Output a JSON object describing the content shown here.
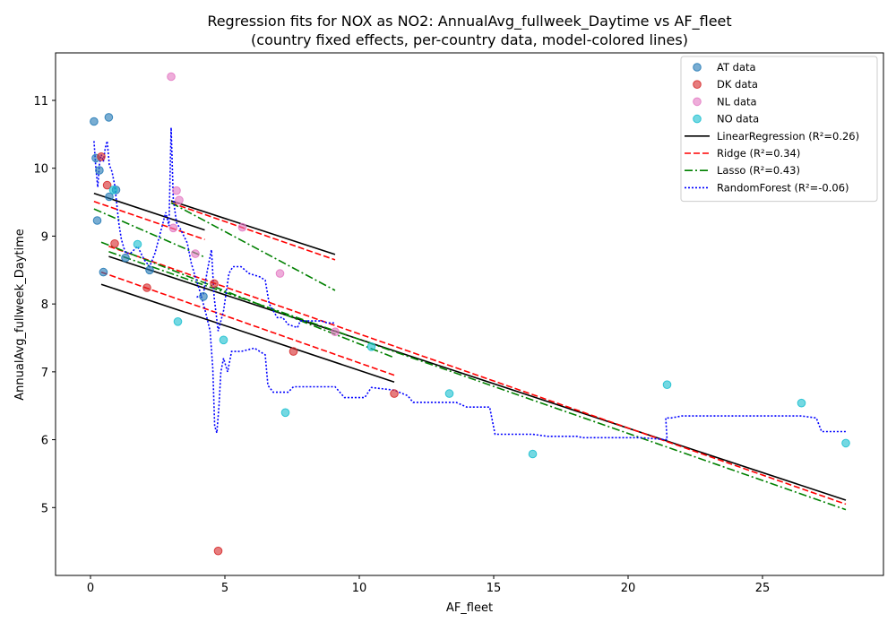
{
  "chart_data": {
    "type": "scatter",
    "title_line1": "Regression fits for NOX as NO2: AnnualAvg_fullweek_Daytime vs AF_fleet",
    "title_line2": "(country fixed effects, per-country data, model-colored lines)",
    "xlabel": "AF_fleet",
    "ylabel": "AnnualAvg_fullweek_Daytime",
    "xlim": [
      -1.3,
      29.5
    ],
    "ylim": [
      4.0,
      11.7
    ],
    "xticks": [
      0,
      5,
      10,
      15,
      20,
      25
    ],
    "yticks": [
      5,
      6,
      7,
      8,
      9,
      10,
      11
    ],
    "grid": false,
    "legend_position": "top-right",
    "scatter_series": [
      {
        "name": "AT data",
        "color": "#1f77b4",
        "points": [
          [
            0.13,
            10.69
          ],
          [
            0.2,
            10.15
          ],
          [
            0.68,
            10.75
          ],
          [
            0.33,
            9.97
          ],
          [
            0.25,
            9.23
          ],
          [
            0.7,
            9.58
          ],
          [
            0.48,
            8.47
          ],
          [
            1.3,
            8.68
          ],
          [
            2.2,
            8.5
          ],
          [
            4.2,
            8.11
          ],
          [
            0.95,
            9.68
          ]
        ]
      },
      {
        "name": "DK data",
        "color": "#d62728",
        "points": [
          [
            0.4,
            10.17
          ],
          [
            0.62,
            9.75
          ],
          [
            0.9,
            8.89
          ],
          [
            2.1,
            8.24
          ],
          [
            4.6,
            8.3
          ],
          [
            7.55,
            7.3
          ],
          [
            11.3,
            6.68
          ],
          [
            4.75,
            4.36
          ]
        ]
      },
      {
        "name": "NL data",
        "color": "#e377c2",
        "points": [
          [
            3.0,
            11.35
          ],
          [
            3.2,
            9.67
          ],
          [
            3.3,
            9.53
          ],
          [
            3.08,
            9.12
          ],
          [
            3.9,
            8.74
          ],
          [
            5.65,
            9.13
          ],
          [
            7.05,
            8.45
          ],
          [
            9.1,
            7.59
          ]
        ]
      },
      {
        "name": "NO data",
        "color": "#17becf",
        "points": [
          [
            0.85,
            9.68
          ],
          [
            1.75,
            8.88
          ],
          [
            3.25,
            7.74
          ],
          [
            4.95,
            7.47
          ],
          [
            7.25,
            6.4
          ],
          [
            10.45,
            7.37
          ],
          [
            13.35,
            6.68
          ],
          [
            16.45,
            5.79
          ],
          [
            21.45,
            6.81
          ],
          [
            26.45,
            6.54
          ],
          [
            28.1,
            5.95
          ]
        ]
      }
    ],
    "fit_series": [
      {
        "name": "LinearRegression (R²=0.26)",
        "color": "#000000",
        "dash": "solid",
        "segments": [
          [
            [
              0.13,
              9.63
            ],
            [
              4.25,
              9.09
            ]
          ],
          [
            [
              0.4,
              8.29
            ],
            [
              11.3,
              6.85
            ]
          ],
          [
            [
              3.0,
              9.52
            ],
            [
              9.1,
              8.73
            ]
          ],
          [
            [
              0.68,
              8.7
            ],
            [
              28.1,
              5.11
            ]
          ]
        ]
      },
      {
        "name": "Ridge (R²=0.34)",
        "color": "#ff0000",
        "dash": "dashed",
        "segments": [
          [
            [
              0.13,
              9.51
            ],
            [
              4.25,
              8.95
            ]
          ],
          [
            [
              0.4,
              8.47
            ],
            [
              11.3,
              6.95
            ]
          ],
          [
            [
              3.0,
              9.49
            ],
            [
              9.1,
              8.65
            ]
          ],
          [
            [
              0.68,
              8.85
            ],
            [
              28.1,
              5.05
            ]
          ]
        ]
      },
      {
        "name": "Lasso (R²=0.43)",
        "color": "#008000",
        "dash": "dashdot",
        "segments": [
          [
            [
              0.13,
              9.4
            ],
            [
              4.25,
              8.69
            ]
          ],
          [
            [
              0.4,
              8.91
            ],
            [
              11.3,
              7.21
            ]
          ],
          [
            [
              3.0,
              9.49
            ],
            [
              9.1,
              8.2
            ]
          ],
          [
            [
              0.68,
              8.77
            ],
            [
              28.1,
              4.97
            ]
          ]
        ]
      },
      {
        "name": "RandomForest (R²=-0.06)",
        "color": "#0000ff",
        "dash": "dotted",
        "segments": [
          [
            [
              0.13,
              10.4
            ],
            [
              0.2,
              10.0
            ],
            [
              0.27,
              9.72
            ],
            [
              0.33,
              10.05
            ],
            [
              0.4,
              10.2
            ],
            [
              0.48,
              10.1
            ],
            [
              0.55,
              10.3
            ],
            [
              0.62,
              10.4
            ],
            [
              0.7,
              10.05
            ],
            [
              0.8,
              9.95
            ],
            [
              0.9,
              9.75
            ],
            [
              0.97,
              9.5
            ],
            [
              1.05,
              9.2
            ],
            [
              1.15,
              8.95
            ],
            [
              1.3,
              8.75
            ],
            [
              1.5,
              8.75
            ],
            [
              1.75,
              8.85
            ],
            [
              2.0,
              8.65
            ],
            [
              2.2,
              8.55
            ],
            [
              2.4,
              8.75
            ],
            [
              2.6,
              9.05
            ],
            [
              2.8,
              9.35
            ],
            [
              2.92,
              9.15
            ],
            [
              3.0,
              10.6
            ],
            [
              3.08,
              9.55
            ],
            [
              3.2,
              9.2
            ],
            [
              3.35,
              9.1
            ],
            [
              3.6,
              8.9
            ],
            [
              3.75,
              8.6
            ],
            [
              3.9,
              8.4
            ],
            [
              4.1,
              8.15
            ],
            [
              4.3,
              7.85
            ],
            [
              4.45,
              7.6
            ],
            [
              4.55,
              7.05
            ],
            [
              4.62,
              6.2
            ],
            [
              4.7,
              6.1
            ],
            [
              4.78,
              6.5
            ],
            [
              4.85,
              7.0
            ],
            [
              4.95,
              7.2
            ],
            [
              5.1,
              7.0
            ],
            [
              5.25,
              7.3
            ],
            [
              5.6,
              7.3
            ],
            [
              6.1,
              7.35
            ],
            [
              6.5,
              7.25
            ],
            [
              6.6,
              6.8
            ],
            [
              6.8,
              6.7
            ],
            [
              7.35,
              6.7
            ],
            [
              7.55,
              6.78
            ],
            [
              9.1,
              6.78
            ],
            [
              9.45,
              6.62
            ],
            [
              10.2,
              6.62
            ],
            [
              10.45,
              6.77
            ],
            [
              11.3,
              6.73
            ],
            [
              11.8,
              6.65
            ],
            [
              12.0,
              6.55
            ],
            [
              13.6,
              6.55
            ],
            [
              14.0,
              6.48
            ],
            [
              14.85,
              6.48
            ],
            [
              15.05,
              6.08
            ],
            [
              16.45,
              6.08
            ],
            [
              17.0,
              6.05
            ],
            [
              18.1,
              6.05
            ],
            [
              18.3,
              6.03
            ],
            [
              20.5,
              6.03
            ],
            [
              21.45,
              6.0
            ],
            [
              21.4,
              6.32
            ],
            [
              21.6,
              6.32
            ],
            [
              22.0,
              6.35
            ],
            [
              26.45,
              6.35
            ],
            [
              27.0,
              6.32
            ],
            [
              27.2,
              6.12
            ],
            [
              28.1,
              6.12
            ]
          ],
          [
            [
              3.95,
              8.1
            ],
            [
              4.2,
              8.15
            ],
            [
              4.35,
              8.5
            ],
            [
              4.5,
              8.8
            ],
            [
              4.6,
              8.1
            ],
            [
              4.75,
              7.6
            ],
            [
              4.95,
              7.9
            ],
            [
              5.15,
              8.45
            ],
            [
              5.3,
              8.55
            ],
            [
              5.6,
              8.55
            ],
            [
              5.9,
              8.45
            ],
            [
              6.3,
              8.4
            ],
            [
              6.5,
              8.35
            ],
            [
              6.65,
              8.0
            ],
            [
              6.95,
              7.8
            ],
            [
              7.15,
              7.8
            ],
            [
              7.35,
              7.7
            ],
            [
              7.7,
              7.65
            ],
            [
              7.8,
              7.75
            ],
            [
              8.6,
              7.75
            ],
            [
              8.8,
              7.72
            ],
            [
              9.1,
              7.72
            ]
          ]
        ]
      }
    ]
  }
}
